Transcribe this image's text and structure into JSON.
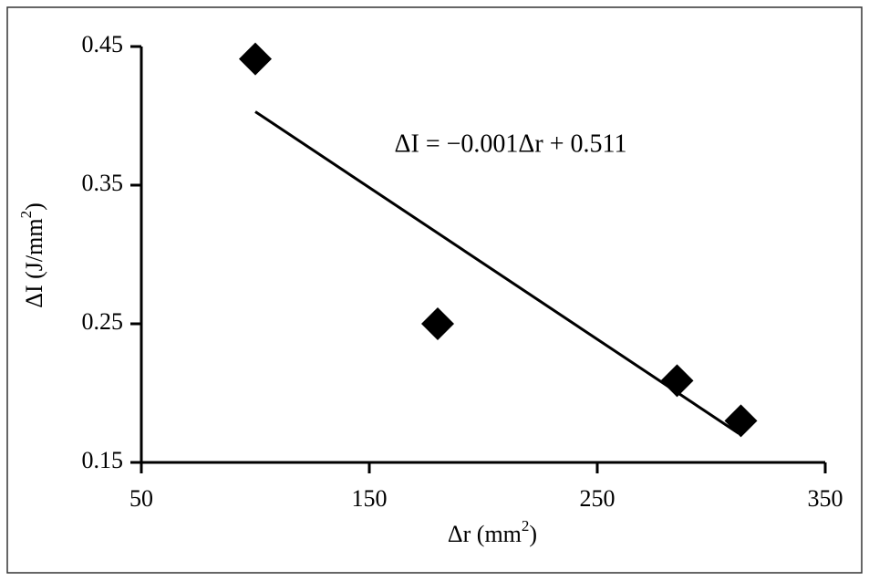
{
  "chart_data": {
    "type": "scatter",
    "xlabel": [
      "Δr (mm",
      "2",
      ")"
    ],
    "ylabel": [
      "ΔI (J/mm",
      "2",
      ")"
    ],
    "annotation": "ΔI = −0.001Δr + 0.511",
    "x": [
      100,
      180,
      285,
      313
    ],
    "values": [
      0.441,
      0.25,
      0.209,
      0.18
    ],
    "color": "#000000",
    "trendline": {
      "x": [
        100,
        312
      ],
      "y": [
        0.403,
        0.171
      ]
    },
    "xlim": [
      50,
      350
    ],
    "xticks": [
      50,
      150,
      250,
      350
    ],
    "ylim": [
      0.15,
      0.45
    ],
    "yticks": [
      0.15,
      0.25,
      0.35,
      0.45
    ]
  }
}
